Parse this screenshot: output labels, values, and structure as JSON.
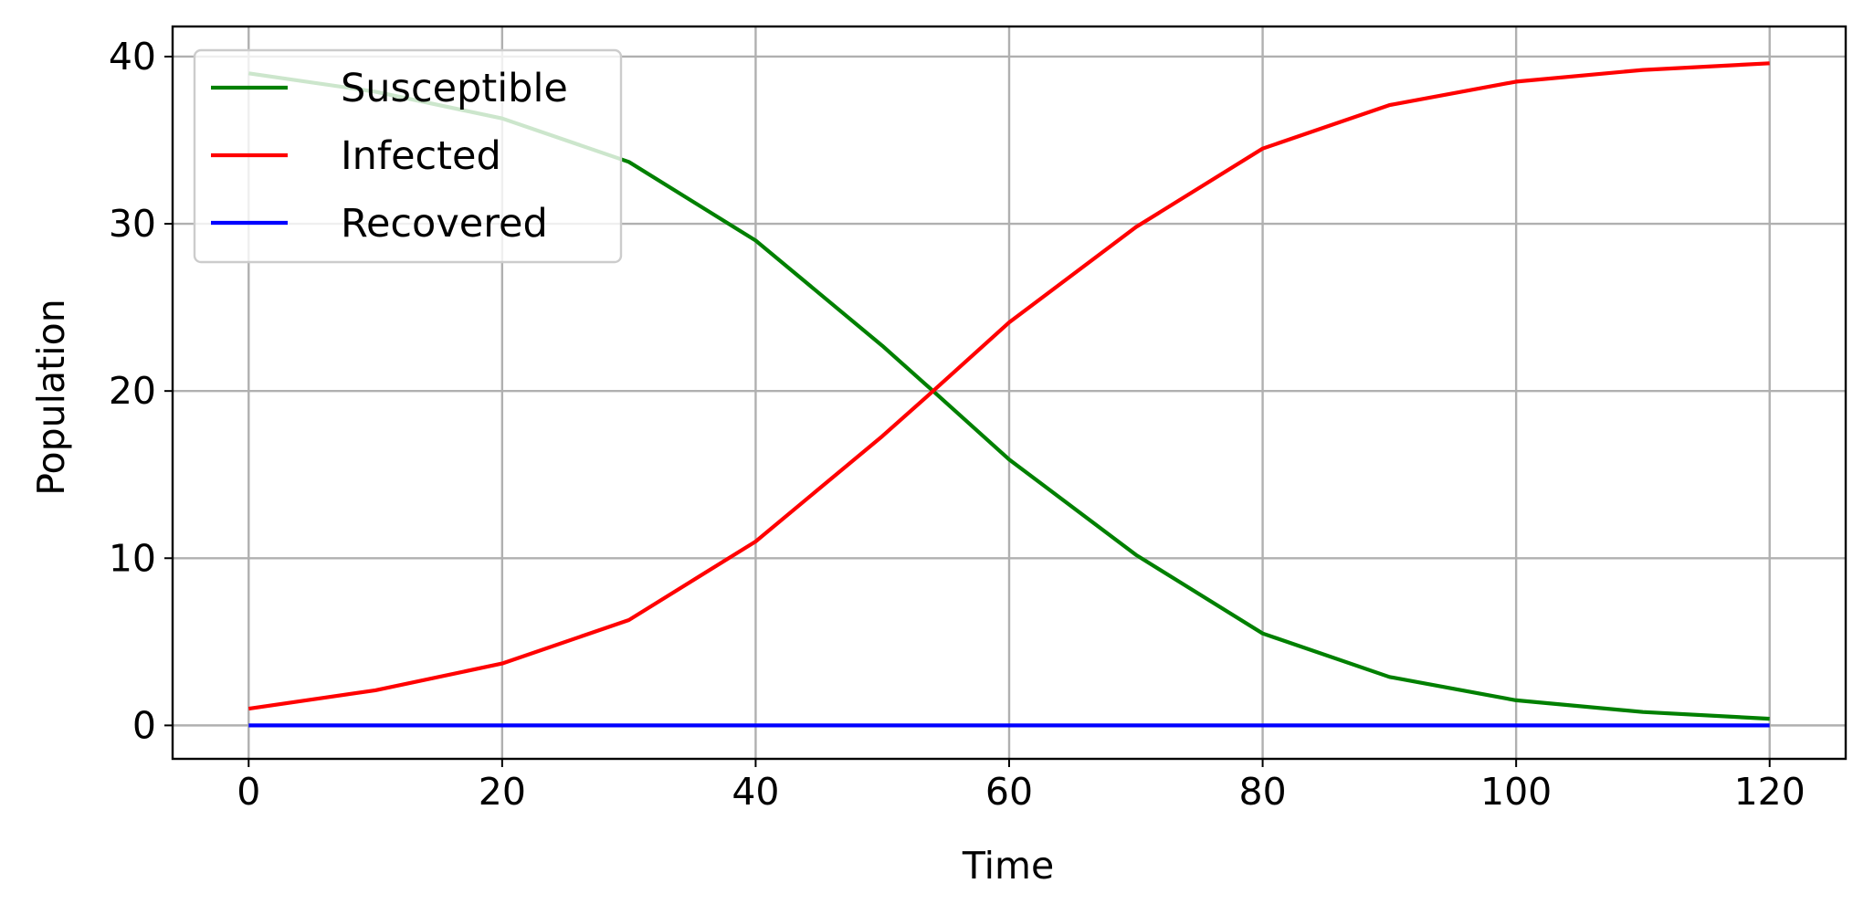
{
  "chart_data": {
    "type": "line",
    "xlabel": "Time",
    "ylabel": "Population",
    "xlim": [
      -6,
      126
    ],
    "ylim": [
      -2,
      41.8
    ],
    "xticks": [
      0,
      20,
      40,
      60,
      80,
      100,
      120
    ],
    "yticks": [
      0,
      10,
      20,
      30,
      40
    ],
    "grid": true,
    "legend_position": "upper-left",
    "x": [
      0,
      10,
      20,
      30,
      40,
      50,
      54,
      60,
      70,
      80,
      90,
      100,
      110,
      120
    ],
    "series": [
      {
        "name": "Susceptible",
        "color": "#008000",
        "values": [
          39,
          37.9,
          36.3,
          33.7,
          29,
          22.7,
          20,
          15.9,
          10.2,
          5.5,
          2.9,
          1.5,
          0.8,
          0.4
        ]
      },
      {
        "name": "Infected",
        "color": "#ff0000",
        "values": [
          1,
          2.1,
          3.7,
          6.3,
          11,
          17.3,
          20,
          24.1,
          29.8,
          34.5,
          37.1,
          38.5,
          39.2,
          39.6
        ]
      },
      {
        "name": "Recovered",
        "color": "#0000ff",
        "values": [
          0,
          0,
          0,
          0,
          0,
          0,
          0,
          0,
          0,
          0,
          0,
          0,
          0,
          0
        ]
      }
    ]
  }
}
